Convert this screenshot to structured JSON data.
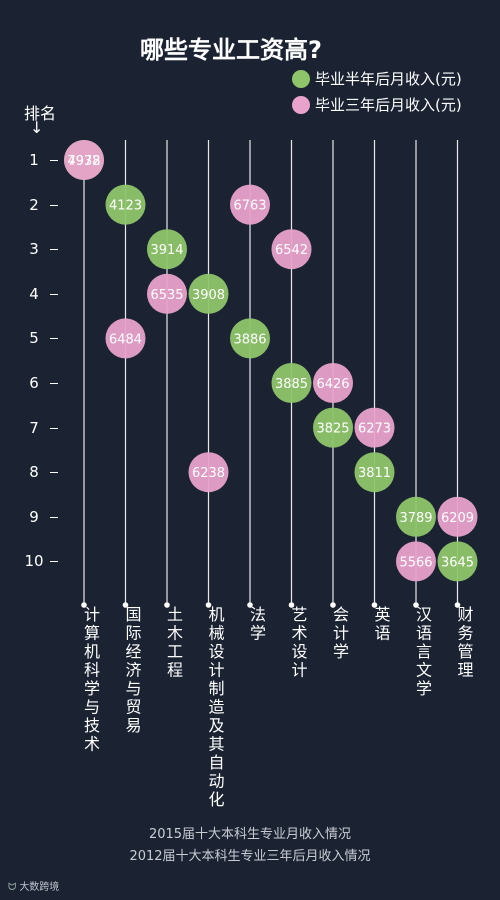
{
  "title": "哪些专业工资高?",
  "legend": [
    {
      "label": "毕业半年后月收入(元)",
      "color": "#8ec56a"
    },
    {
      "label": "毕业三年后月收入(元)",
      "color": "#e8a2cb"
    }
  ],
  "axis": {
    "label": "排名",
    "arrow": "↓"
  },
  "ranks": [
    "1",
    "2",
    "3",
    "4",
    "5",
    "6",
    "7",
    "8",
    "9",
    "10"
  ],
  "chart_data": {
    "type": "scatter",
    "title": "哪些专业工资高?",
    "ylabel": "排名",
    "ylim": [
      1,
      10
    ],
    "categories": [
      "计算机科学与技术",
      "国际经济与贸易",
      "土木工程",
      "机械设计制造及其自动化",
      "法学",
      "艺术设计",
      "会计学",
      "英语",
      "汉语言文学",
      "财务管理"
    ],
    "series": [
      {
        "name": "毕业半年后月收入(元)",
        "color": "#8ec56a",
        "points": [
          {
            "major": "计算机科学与技术",
            "rank": 1,
            "income": 4978
          },
          {
            "major": "国际经济与贸易",
            "rank": 2,
            "income": 4123
          },
          {
            "major": "土木工程",
            "rank": 3,
            "income": 3914
          },
          {
            "major": "机械设计制造及其自动化",
            "rank": 4,
            "income": 3908
          },
          {
            "major": "法学",
            "rank": 5,
            "income": 3886
          },
          {
            "major": "艺术设计",
            "rank": 6,
            "income": 3885
          },
          {
            "major": "会计学",
            "rank": 7,
            "income": 3825
          },
          {
            "major": "英语",
            "rank": 8,
            "income": 3811
          },
          {
            "major": "汉语言文学",
            "rank": 9,
            "income": 3789
          },
          {
            "major": "财务管理",
            "rank": 10,
            "income": 3645
          }
        ]
      },
      {
        "name": "毕业三年后月收入(元)",
        "color": "#e8a2cb",
        "points": [
          {
            "major": "计算机科学与技术",
            "rank": 1,
            "income": 7932
          },
          {
            "major": "法学",
            "rank": 2,
            "income": 6763
          },
          {
            "major": "艺术设计",
            "rank": 3,
            "income": 6542
          },
          {
            "major": "土木工程",
            "rank": 4,
            "income": 6535
          },
          {
            "major": "国际经济与贸易",
            "rank": 5,
            "income": 6484
          },
          {
            "major": "会计学",
            "rank": 6,
            "income": 6426
          },
          {
            "major": "英语",
            "rank": 7,
            "income": 6273
          },
          {
            "major": "机械设计制造及其自动化",
            "rank": 8,
            "income": 6238
          },
          {
            "major": "财务管理",
            "rank": 9,
            "income": 6209
          },
          {
            "major": "汉语言文学",
            "rank": 10,
            "income": 5566
          }
        ]
      }
    ]
  },
  "footer": [
    "2015届十大本科生专业月收入情况",
    "2012届十大本科生专业三年后月收入情况"
  ],
  "brand": "大数跨境"
}
